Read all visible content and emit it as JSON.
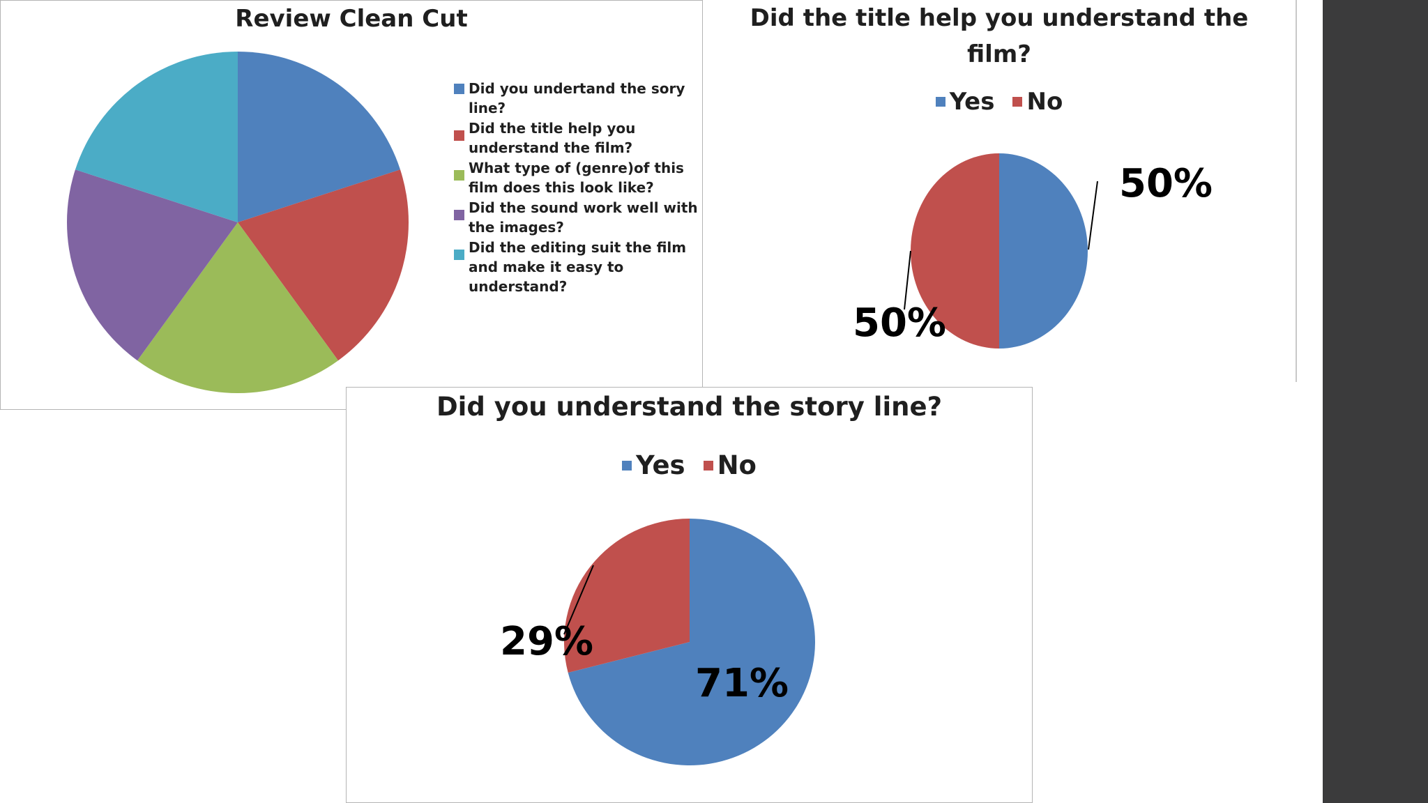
{
  "colors": {
    "blue": "#4f81bd",
    "red": "#c0504d",
    "green": "#9bbb59",
    "purple": "#8064a2",
    "cyan": "#4bacc6",
    "sidebar": "#3b3b3c"
  },
  "chart_data": [
    {
      "type": "pie",
      "title": "Review Clean Cut",
      "legend_placement": "right",
      "categories": [
        "Did you undertand the sory line?",
        "Did the title help you understand the film?",
        "What type of (genre)of this film does this look like?",
        "Did the sound work well with the images?",
        "Did the editing suit the film and make it easy to understand?"
      ],
      "values": [
        20,
        20,
        20,
        20,
        20
      ],
      "colors": [
        "#4f81bd",
        "#c0504d",
        "#9bbb59",
        "#8064a2",
        "#4bacc6"
      ]
    },
    {
      "type": "pie",
      "title": "Did the title help you understand the film?",
      "legend_placement": "top",
      "categories": [
        "Yes",
        "No"
      ],
      "values": [
        50,
        50
      ],
      "data_labels": [
        "50%",
        "50%"
      ],
      "colors": [
        "#4f81bd",
        "#c0504d"
      ]
    },
    {
      "type": "pie",
      "title": "Did you understand the story line?",
      "legend_placement": "top",
      "categories": [
        "Yes",
        "No"
      ],
      "values": [
        71,
        29
      ],
      "data_labels": [
        "71%",
        "29%"
      ],
      "colors": [
        "#4f81bd",
        "#c0504d"
      ]
    }
  ]
}
